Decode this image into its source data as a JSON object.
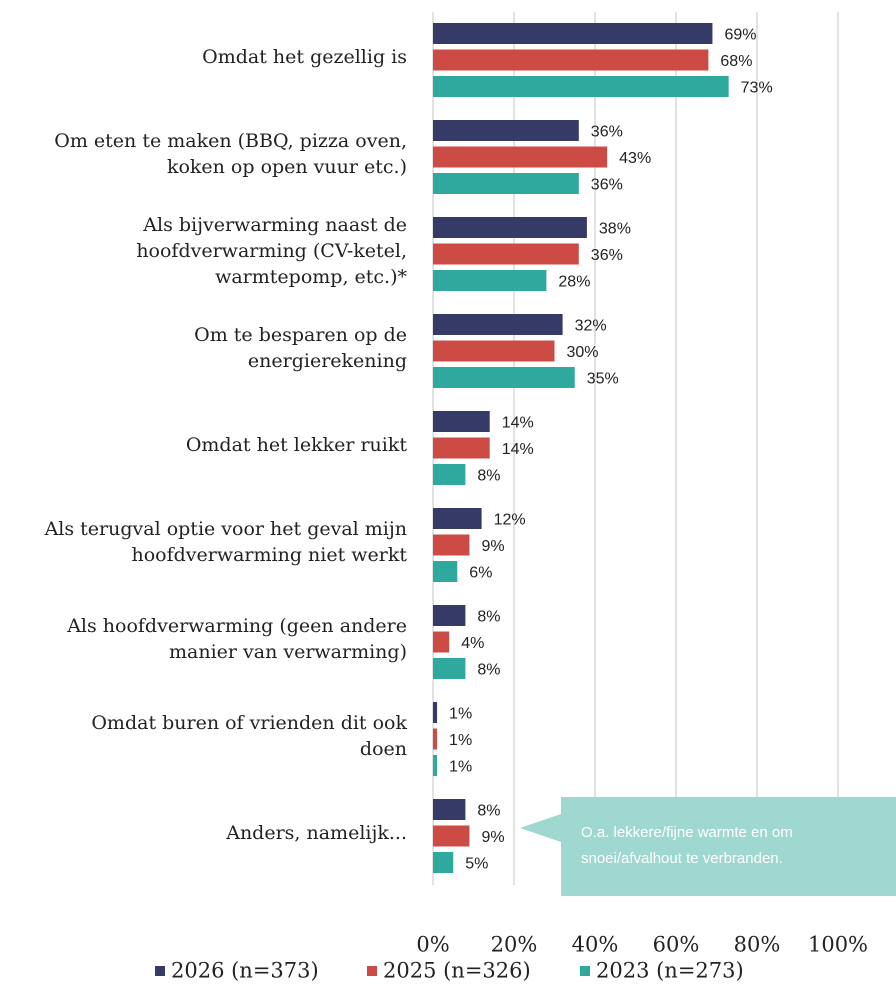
{
  "chart_data": {
    "type": "barh",
    "categories": [
      [
        "Omdat het gezellig is"
      ],
      [
        "Om eten te maken (BBQ, pizza oven,",
        "koken op open vuur etc.)"
      ],
      [
        "Als bijverwarming naast de",
        "hoofdverwarming (CV-ketel,",
        "warmtepomp, etc.)*"
      ],
      [
        "Om te besparen op de",
        "energierekening"
      ],
      [
        "Omdat het lekker ruikt"
      ],
      [
        "Als terugval optie voor het geval mijn",
        "hoofdverwarming niet werkt"
      ],
      [
        "Als hoofdverwarming (geen andere",
        "manier van verwarming)"
      ],
      [
        "Omdat buren of vrienden dit ook",
        "doen"
      ],
      [
        "Anders, namelijk..."
      ]
    ],
    "series": [
      {
        "name": "2026 (n=373)",
        "color": "#363a66",
        "values": [
          69,
          36,
          38,
          32,
          14,
          12,
          8,
          1,
          8
        ],
        "value_labels": [
          "69%",
          "36%",
          "38%",
          "32%",
          "14%",
          "12%",
          "8%",
          "1%",
          "8%"
        ]
      },
      {
        "name": "2025 (n=326)",
        "color": "#cc4b45",
        "values": [
          68,
          43,
          36,
          30,
          14,
          9,
          4,
          1,
          9
        ],
        "value_labels": [
          "68%",
          "43%",
          "36%",
          "30%",
          "14%",
          "9%",
          "4%",
          "1%",
          "9%"
        ]
      },
      {
        "name": "2023 (n=273)",
        "color": "#2fa89e",
        "values": [
          73,
          36,
          28,
          35,
          8,
          6,
          8,
          1,
          5
        ],
        "value_labels": [
          "73%",
          "36%",
          "28%",
          "35%",
          "8%",
          "6%",
          "8%",
          "1%",
          "5%"
        ]
      }
    ],
    "xlim": [
      0,
      100
    ],
    "xticks": [
      {
        "value": 0,
        "label": "0%"
      },
      {
        "value": 20,
        "label": "20%"
      },
      {
        "value": 40,
        "label": "40%"
      },
      {
        "value": 60,
        "label": "60%"
      },
      {
        "value": 80,
        "label": "80%"
      },
      {
        "value": 100,
        "label": "100%"
      }
    ],
    "grid": true,
    "legend": "bottom",
    "annotation": [
      "O.a. lekkere/fijne warmte en om",
      "snoei/afvalhout te verbranden."
    ]
  }
}
